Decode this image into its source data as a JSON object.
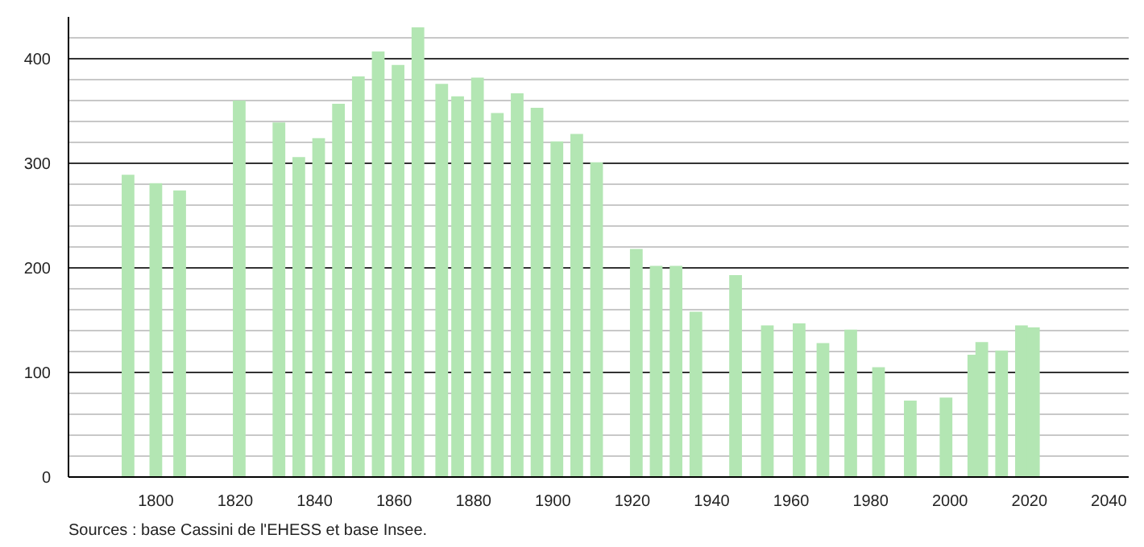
{
  "chart_data": {
    "type": "bar",
    "color": "#b3e6b3",
    "x": [
      1793,
      1800,
      1806,
      1821,
      1831,
      1836,
      1841,
      1846,
      1851,
      1856,
      1861,
      1866,
      1872,
      1876,
      1881,
      1886,
      1891,
      1896,
      1901,
      1906,
      1911,
      1921,
      1926,
      1931,
      1936,
      1946,
      1954,
      1962,
      1968,
      1975,
      1982,
      1990,
      1999,
      2006,
      2008,
      2013,
      2018,
      2021
    ],
    "values": [
      289,
      281,
      274,
      360,
      339,
      306,
      324,
      357,
      383,
      407,
      394,
      430,
      376,
      364,
      382,
      348,
      367,
      353,
      321,
      328,
      301,
      218,
      202,
      202,
      158,
      193,
      145,
      147,
      128,
      141,
      105,
      73,
      76,
      117,
      129,
      121,
      145,
      143
    ],
    "xlim": [
      1778,
      2045
    ],
    "xticks": [
      1800,
      1820,
      1840,
      1860,
      1880,
      1900,
      1920,
      1940,
      1960,
      1980,
      2000,
      2020,
      2040
    ],
    "ylim": [
      0,
      440
    ],
    "yticks": [
      0,
      100,
      200,
      300,
      400
    ],
    "grid": "y",
    "annotations": [
      "Sources : base Cassini de l'EHESS et base Insee."
    ]
  }
}
